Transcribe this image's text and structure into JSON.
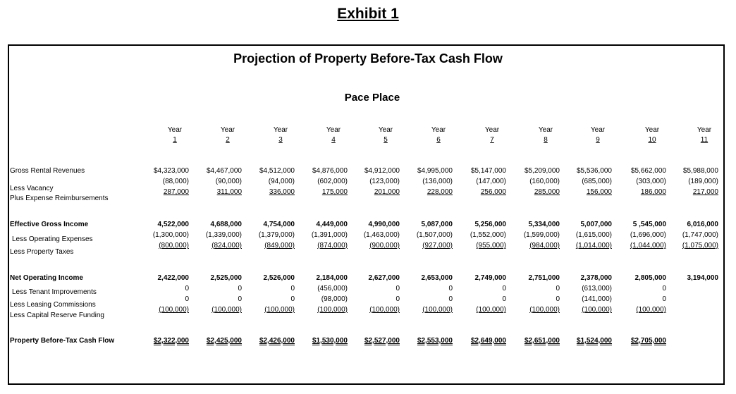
{
  "heading": {
    "exhibit": "Exhibit 1",
    "title": "Projection of Property Before-Tax Cash Flow",
    "property": "Pace Place"
  },
  "year_label": "Year",
  "years": [
    "1",
    "2",
    "3",
    "4",
    "5",
    "6",
    "7",
    "8",
    "9",
    "10",
    "11"
  ],
  "rows": [
    {
      "label": "Gross Rental Revenues",
      "values": [
        "$4,323,000",
        "$4,467,000",
        "$4,512,000",
        "$4,876,000",
        "$4,912,000",
        "$4,995,000",
        "$5,147,000",
        "$5,209,000",
        "$5,536,000",
        "$5,662,000",
        "$5,988,000"
      ]
    },
    {
      "label": "Less Vacancy",
      "values": [
        "(88,000)",
        "(90,000)",
        "(94,000)",
        "(602,000)",
        "(123,000)",
        "(136,000)",
        "(147,000)",
        "(160,000)",
        "(685,000)",
        "(303,000)",
        "(189,000)"
      ]
    },
    {
      "label": "Plus Expense Reimbursements",
      "values": [
        "287,000",
        "311,000",
        "336,000",
        "175,000",
        "201,000",
        "228,000",
        "256,000",
        "285,000",
        "156,000",
        "186,000",
        "217,000"
      ]
    },
    {
      "label": "Effective Gross Income",
      "values": [
        "4,522,000",
        "4,688,000",
        "4,754,000",
        "4,449,000",
        "4,990,000",
        "5,087,000",
        "5,256,000",
        "5,334,000",
        "5,007,000",
        "5 ,545,000",
        "6,016,000"
      ]
    },
    {
      "label": "Less Operating Expenses",
      "values": [
        "(1,300,000)",
        "(1,339,000)",
        "(1,379,000)",
        "(1,391,000)",
        "(1,463,000)",
        "(1,507,000)",
        "(1,552,000)",
        "(1,599,000)",
        "(1,615,000)",
        "(1,696,000)",
        "(1,747,000)"
      ]
    },
    {
      "label": "Less Property Taxes",
      "values": [
        "(800,000)",
        "(824,000)",
        "(849,000)",
        "(874,000)",
        "(900,000)",
        "(927,000)",
        "(955,000)",
        "(984,000)",
        "(1,014,000)",
        "(1,044,000)",
        "(1,075,000)"
      ]
    },
    {
      "label": "Net Operating Income",
      "values": [
        "2,422,000",
        "2,525,000",
        "2,526,000",
        "2,184,000",
        "2,627,000",
        "2,653,000",
        "2,749,000",
        "2,751,000",
        "2,378,000",
        "2,805,000",
        "3,194,000"
      ]
    },
    {
      "label": "Less Tenant Improvements",
      "values": [
        "0",
        "0",
        "0",
        "(456,000)",
        "0",
        "0",
        "0",
        "0",
        "(613,000)",
        "0",
        ""
      ]
    },
    {
      "label": "Less Leasing Commissions",
      "values": [
        "0",
        "0",
        "0",
        "(98,000)",
        "0",
        "0",
        "0",
        "0",
        "(141,000)",
        "0",
        ""
      ]
    },
    {
      "label": "Less Capital Reserve Funding",
      "values": [
        "(100,000)",
        "(100,000)",
        "(100,000)",
        "(100,000)",
        "(100,000)",
        "(100,000)",
        "(100,000)",
        "(100,000)",
        "(100,000)",
        "(100,000)",
        ""
      ]
    },
    {
      "label": "Property Before-Tax Cash Flow",
      "values": [
        "$2,322,000",
        "$2,425,000",
        "$2,426,000",
        "$1,530,000",
        "$2,527,000",
        "$2,553,000",
        "$2,649,000",
        "$2,651,000",
        "$1,524,000",
        "$2,705,000",
        ""
      ]
    }
  ]
}
